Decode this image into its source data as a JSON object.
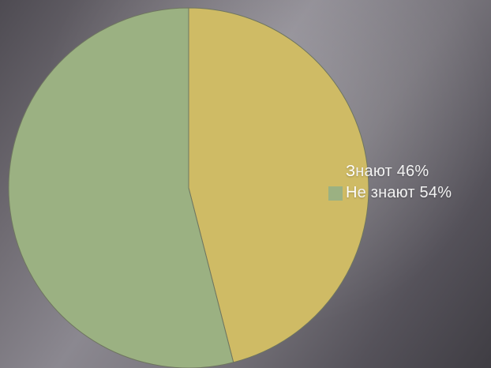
{
  "chart_data": {
    "type": "pie",
    "slices": [
      {
        "label": "Знают 46%",
        "value": 46,
        "color": "#cfbb65"
      },
      {
        "label": "Не знают 54%",
        "value": 54,
        "color": "#9bb182"
      }
    ],
    "legend_position": "right",
    "start_angle_deg": 0,
    "direction": "clockwise"
  },
  "colors": {
    "outline": "#6f7660",
    "legend_text": "#f2f2f2"
  }
}
